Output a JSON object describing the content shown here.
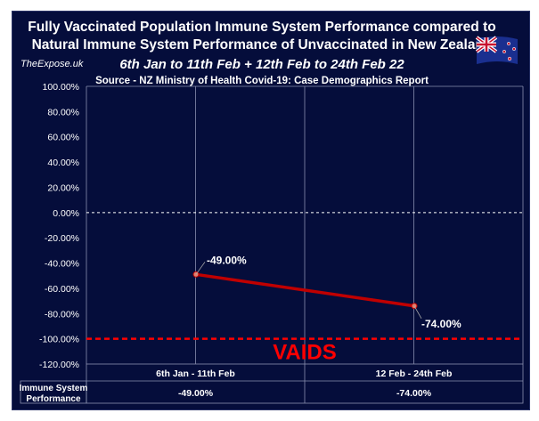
{
  "header": {
    "title_line1": "Fully Vaccinated Population Immune System Performance compared to",
    "title_line2": "Natural Immune System Performance of Unvaccinated in New Zealand",
    "subtitle": "6th Jan to 11th Feb + 12th Feb to 24th Feb 22",
    "source": "Source - NZ Ministry of Health Covid-19: Case Demographics Report",
    "brand": "TheExpose.uk",
    "flag_icon": "new-zealand-flag"
  },
  "chart_data": {
    "type": "line",
    "title": "Fully Vaccinated Population Immune System Performance compared to Natural Immune System Performance of Unvaccinated in New Zealand",
    "categories": [
      "6th Jan - 11th Feb",
      "12 Feb - 24th Feb"
    ],
    "series": [
      {
        "name": "Immune System Performance",
        "values": [
          -49.0,
          -74.0
        ],
        "labels": [
          "-49.00%",
          "-74.00%"
        ],
        "color": "#c00000"
      }
    ],
    "ylim": [
      -120,
      100
    ],
    "yticks": [
      "100.00%",
      "80.00%",
      "60.00%",
      "40.00%",
      "20.00%",
      "0.00%",
      "-20.00%",
      "-40.00%",
      "-60.00%",
      "-80.00%",
      "-100.00%",
      "-120.00%"
    ],
    "grid": true,
    "reference_lines": [
      {
        "value": 0,
        "color": "#ffffff",
        "style": "dashed"
      },
      {
        "value": -100,
        "color": "#ff0000",
        "style": "dashed",
        "label": "VAIDS"
      }
    ],
    "table": {
      "row_header": "Immune System Performance",
      "row_header_lines": [
        "Immune System",
        "Performance"
      ],
      "values": [
        "-49.00%",
        "-74.00%"
      ]
    },
    "background": "#050d3b"
  }
}
